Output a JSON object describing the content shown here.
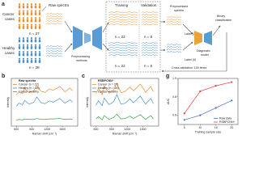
{
  "diagram": {
    "panel": "a",
    "cancer_label": [
      "Cancer",
      "cases"
    ],
    "cancer_n": "n = 27",
    "healthy_label": [
      "Healthy",
      "cases"
    ],
    "healthy_n": "n = 28",
    "raw_spectra": "Raw spectra",
    "preprocessing": [
      "Preprocessing",
      "methods"
    ],
    "training": "Training",
    "validation": "Validation",
    "train_cancer_n": "n = 22",
    "val_cancer_n": "n = 5",
    "train_healthy_n": "n = 22",
    "val_healthy_n": "n = 6",
    "preprocessed": [
      "Preprocessed",
      "spectra"
    ],
    "label1": "Label (1)",
    "label0": "Label (0)",
    "model": [
      "Diagnostic",
      "model"
    ],
    "binary": [
      "Binary",
      "classification"
    ],
    "cv": "Cross-validation: 100 times"
  },
  "chart_data": [
    {
      "type": "line",
      "panel": "b",
      "annotation": "Raw spectra",
      "xlabel": "Raman shift (cm⁻¹)",
      "ylabel": "Intensity",
      "xlim": [
        500,
        1800
      ],
      "xticks": [
        600,
        900,
        1200,
        1500
      ],
      "ylim": [
        0,
        10
      ],
      "legend": "upper left",
      "x": [
        600,
        650,
        720,
        760,
        850,
        940,
        1000,
        1080,
        1160,
        1250,
        1320,
        1450,
        1550,
        1650,
        1700
      ],
      "series": [
        {
          "name": "Cancer (n = 27)",
          "color": "#f08c2a",
          "values": [
            6.5,
            7.2,
            6.8,
            7.9,
            7.0,
            7.4,
            8.6,
            7.3,
            7.1,
            7.8,
            7.5,
            8.3,
            7.2,
            8.0,
            7.4
          ]
        },
        {
          "name": "Healthy (n = 28)",
          "color": "#4a90c8",
          "values": [
            4.2,
            4.8,
            4.5,
            5.4,
            4.6,
            5.0,
            6.1,
            4.9,
            4.7,
            5.3,
            5.0,
            5.8,
            4.8,
            5.5,
            5.0
          ]
        },
        {
          "name": "Cancer-Healthy",
          "color": "#3aa04a",
          "values": [
            1.2,
            1.4,
            1.3,
            1.5,
            1.4,
            1.4,
            1.6,
            1.4,
            1.4,
            1.5,
            1.5,
            1.6,
            1.4,
            1.5,
            1.4
          ]
        }
      ]
    },
    {
      "type": "line",
      "panel": "c",
      "annotation": "RSBPCNN⁺",
      "xlabel": "Raman shift (cm⁻¹)",
      "ylabel": "Intensity",
      "xlim": [
        500,
        1800
      ],
      "xticks": [
        600,
        900,
        1200,
        1500
      ],
      "ylim": [
        0,
        10
      ],
      "legend": "upper left",
      "x": [
        600,
        650,
        720,
        760,
        850,
        940,
        1000,
        1080,
        1160,
        1250,
        1320,
        1450,
        1550,
        1650,
        1700
      ],
      "series": [
        {
          "name": "Cancer (n = 27)",
          "color": "#f08c2a",
          "values": [
            6.8,
            7.9,
            6.6,
            8.4,
            6.9,
            7.6,
            9.0,
            7.0,
            7.3,
            8.2,
            7.4,
            8.8,
            7.1,
            8.3,
            7.2
          ]
        },
        {
          "name": "Healthy (n = 28)",
          "color": "#4a90c8",
          "values": [
            4.4,
            5.3,
            4.3,
            5.9,
            4.5,
            5.1,
            6.6,
            4.6,
            4.8,
            5.7,
            4.9,
            6.3,
            4.6,
            5.8,
            4.7
          ]
        },
        {
          "name": "Cancer-Healthy",
          "color": "#3aa04a",
          "values": [
            1.5,
            2.0,
            1.3,
            2.2,
            1.4,
            1.8,
            2.5,
            1.5,
            1.6,
            2.1,
            1.6,
            2.4,
            1.4,
            2.2,
            1.5
          ]
        }
      ]
    },
    {
      "type": "line",
      "panel": "g",
      "markers": true,
      "xlabel": "Training sample size",
      "ylabel": "AUC",
      "xlim": [
        3,
        22
      ],
      "xticks": [
        5,
        10,
        15,
        20
      ],
      "ylim": [
        0.5,
        1
      ],
      "yticks": [
        0.6,
        0.8,
        {
          "value": 1,
          "label": "1.0"
        }
      ],
      "legend": "lower right",
      "x": [
        5,
        10,
        15,
        20
      ],
      "series": [
        {
          "name": "Raw data",
          "color": "#4a70c0",
          "values": [
            0.55,
            0.6,
            0.68,
            0.76
          ]
        },
        {
          "name": "RSBPCNN⁺",
          "color": "#e0403a",
          "values": [
            0.62,
            0.86,
            0.92,
            0.96
          ]
        }
      ]
    }
  ]
}
